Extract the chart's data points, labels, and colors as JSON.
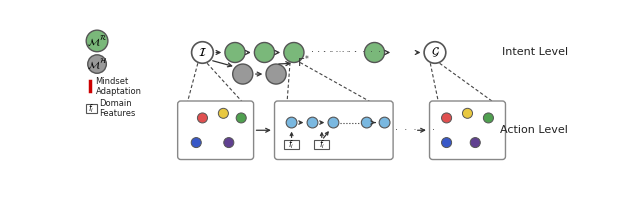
{
  "bg_color": "#ffffff",
  "green_fill": "#7ab87a",
  "gray_fill": "#999999",
  "red_color": "#cc0000",
  "dot_colors": {
    "red": "#e05050",
    "yellow": "#e8c840",
    "green": "#50a050",
    "blue": "#3858c8",
    "purple": "#604090",
    "lightblue": "#7ab8e0"
  },
  "intent_level_label": "Intent Level",
  "action_level_label": "Action Level",
  "legend_MR": "$\\mathcal{M}^\\mathcal{R}$",
  "legend_MH": "$\\mathcal{M}^\\mathcal{H}$",
  "legend_mindset": "Mindset\nAdaptation",
  "gamma_label": "$\\Gamma^*$",
  "I_label": "$\\mathcal{I}$",
  "G_label": "$\\mathcal{G}$",
  "fi_label": "$f_i$"
}
